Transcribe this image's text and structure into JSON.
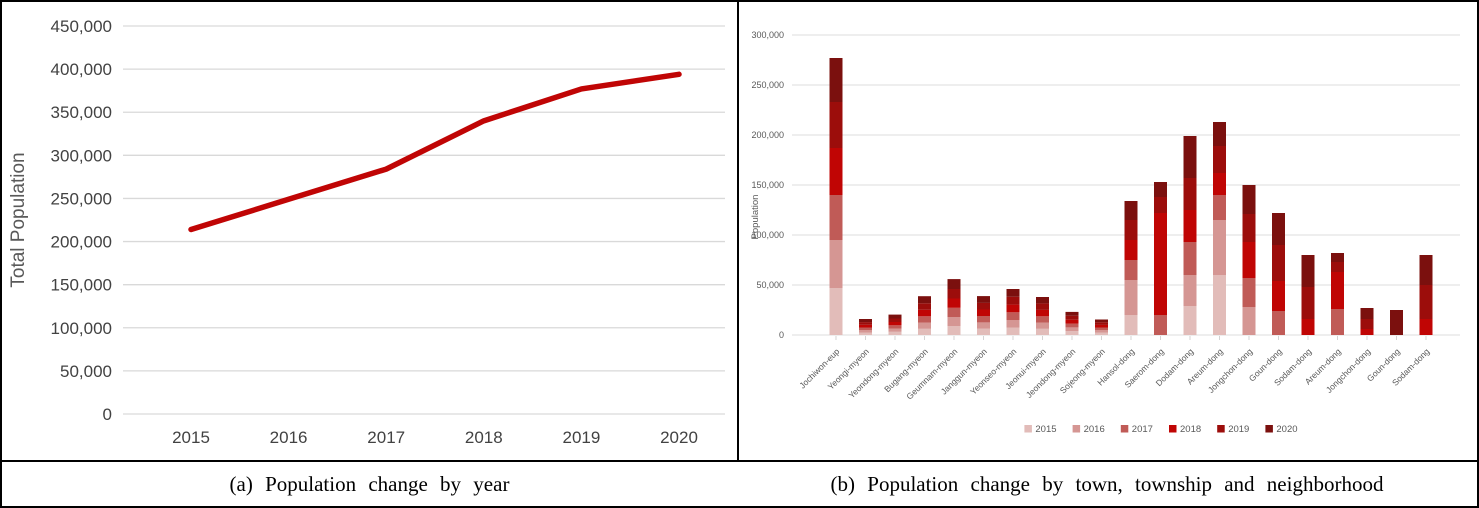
{
  "figure": {
    "captions": {
      "a": "(a) Population change by year",
      "b": "(b) Population change by town, township and neighborhood"
    }
  },
  "chart_data": [
    {
      "type": "line",
      "caption": "(a) Population change by year",
      "ylabel": "Total Population",
      "xlabel": "",
      "x": [
        "2015",
        "2016",
        "2017",
        "2018",
        "2019",
        "2020"
      ],
      "values": [
        214000,
        249000,
        284000,
        340000,
        377000,
        394000
      ],
      "ylim": [
        0,
        450000
      ],
      "yticks": [
        0,
        50000,
        100000,
        150000,
        200000,
        250000,
        300000,
        350000,
        400000,
        450000
      ],
      "grid": true,
      "legend_position": "none",
      "line_color": "#C00505"
    },
    {
      "type": "bar",
      "stacked": true,
      "caption": "(b) Population change by town, township and neighborhood",
      "ylabel": "Population",
      "xlabel": "",
      "ylim": [
        0,
        300000
      ],
      "yticks": [
        0,
        50000,
        100000,
        150000,
        200000,
        250000,
        300000
      ],
      "grid": true,
      "legend_position": "bottom",
      "categories": [
        "Jochiwon-eup",
        "Yeongi-myeon",
        "Yeondong-myeon",
        "Bugang-myeon",
        "Geumnam-myeon",
        "Janggun-myeon",
        "Yeonseo-myeon",
        "Jeonui-myeon",
        "Jeondong-myeon",
        "Sojeong-myeon",
        "Hansol-dong",
        "Saerom-dong",
        "Dodam-dong",
        "Areum-dong",
        "Jongchon-dong",
        "Goun-dong",
        "Sodam-dong",
        "Areum-dong",
        "Jongchon-dong",
        "Goun-dong",
        "Sodam-dong"
      ],
      "series": [
        {
          "name": "2015",
          "color": "#E2BCB9",
          "values": [
            47000,
            2500,
            3200,
            6200,
            9000,
            6300,
            7500,
            6200,
            3800,
            2500,
            20000,
            0,
            29000,
            60000,
            0,
            0,
            0,
            0,
            0,
            0,
            0
          ]
        },
        {
          "name": "2016",
          "color": "#D59693",
          "values": [
            48000,
            2500,
            3200,
            6200,
            9000,
            6300,
            7500,
            6200,
            3800,
            2500,
            35000,
            0,
            31000,
            55000,
            28000,
            0,
            0,
            0,
            0,
            0,
            0
          ]
        },
        {
          "name": "2017",
          "color": "#C05B57",
          "values": [
            45000,
            2500,
            3300,
            6300,
            9200,
            6400,
            7700,
            6300,
            3800,
            2500,
            20000,
            20000,
            33000,
            25000,
            29000,
            24000,
            0,
            26000,
            0,
            0,
            0
          ]
        },
        {
          "name": "2018",
          "color": "#C00504",
          "values": [
            47000,
            2700,
            3300,
            6500,
            9300,
            6500,
            7700,
            6400,
            3900,
            2600,
            20000,
            102000,
            32000,
            22000,
            36000,
            30000,
            16000,
            37000,
            6000,
            0,
            16000
          ]
        },
        {
          "name": "2019",
          "color": "#9C0D0B",
          "values": [
            46000,
            2700,
            3500,
            6500,
            9500,
            6600,
            7800,
            6500,
            3900,
            2600,
            20000,
            16000,
            32000,
            27000,
            28000,
            36000,
            32000,
            10000,
            10000,
            0,
            34000
          ]
        },
        {
          "name": "2020",
          "color": "#7B100E",
          "values": [
            44000,
            3100,
            3900,
            7100,
            9900,
            6800,
            7800,
            6400,
            3900,
            2800,
            19000,
            15000,
            42000,
            24000,
            29000,
            32000,
            32000,
            9000,
            11000,
            25000,
            30000
          ]
        }
      ]
    }
  ]
}
